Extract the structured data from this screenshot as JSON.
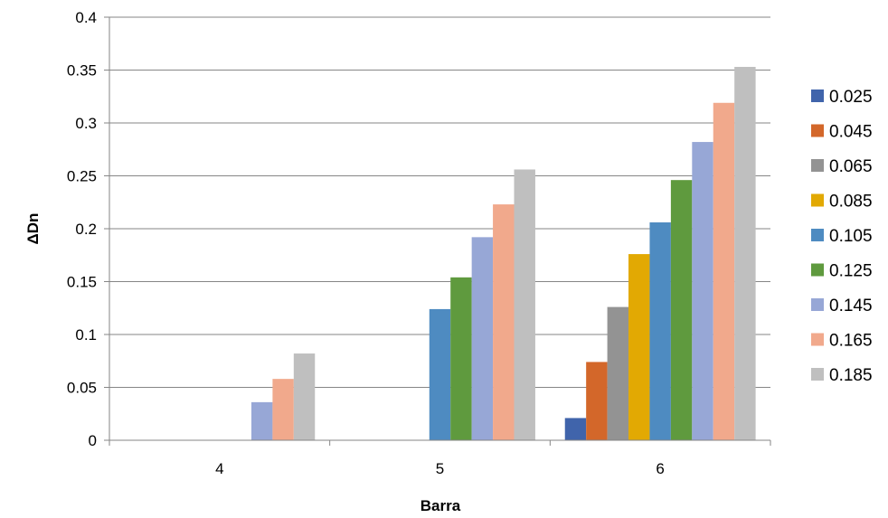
{
  "chart_data": {
    "type": "bar",
    "title": "",
    "xlabel": "Barra",
    "ylabel": "ΔDn",
    "categories": [
      "4",
      "5",
      "6"
    ],
    "ylim": [
      0,
      0.4
    ],
    "yticks": [
      "0",
      "0.05",
      "0.1",
      "0.15",
      "0.2",
      "0.25",
      "0.3",
      "0.35",
      "0.4"
    ],
    "grid": true,
    "legend_position": "right",
    "series": [
      {
        "name": "0.025",
        "color": "#4064AB",
        "values": [
          0,
          0,
          0.021
        ]
      },
      {
        "name": "0.045",
        "color": "#D3672A",
        "values": [
          0,
          0,
          0.074
        ]
      },
      {
        "name": "0.065",
        "color": "#939393",
        "values": [
          0,
          0,
          0.126
        ]
      },
      {
        "name": "0.085",
        "color": "#E2A903",
        "values": [
          0,
          0,
          0.176
        ]
      },
      {
        "name": "0.105",
        "color": "#4E8BC1",
        "values": [
          0,
          0.124,
          0.206
        ]
      },
      {
        "name": "0.125",
        "color": "#5F9A3E",
        "values": [
          0,
          0.154,
          0.246
        ]
      },
      {
        "name": "0.145",
        "color": "#97A7D6",
        "values": [
          0.036,
          0.192,
          0.282
        ]
      },
      {
        "name": "0.165",
        "color": "#F1A98C",
        "values": [
          0.058,
          0.223,
          0.319
        ]
      },
      {
        "name": "0.185",
        "color": "#BFBFBF",
        "values": [
          0.082,
          0.256,
          0.353
        ]
      }
    ]
  }
}
